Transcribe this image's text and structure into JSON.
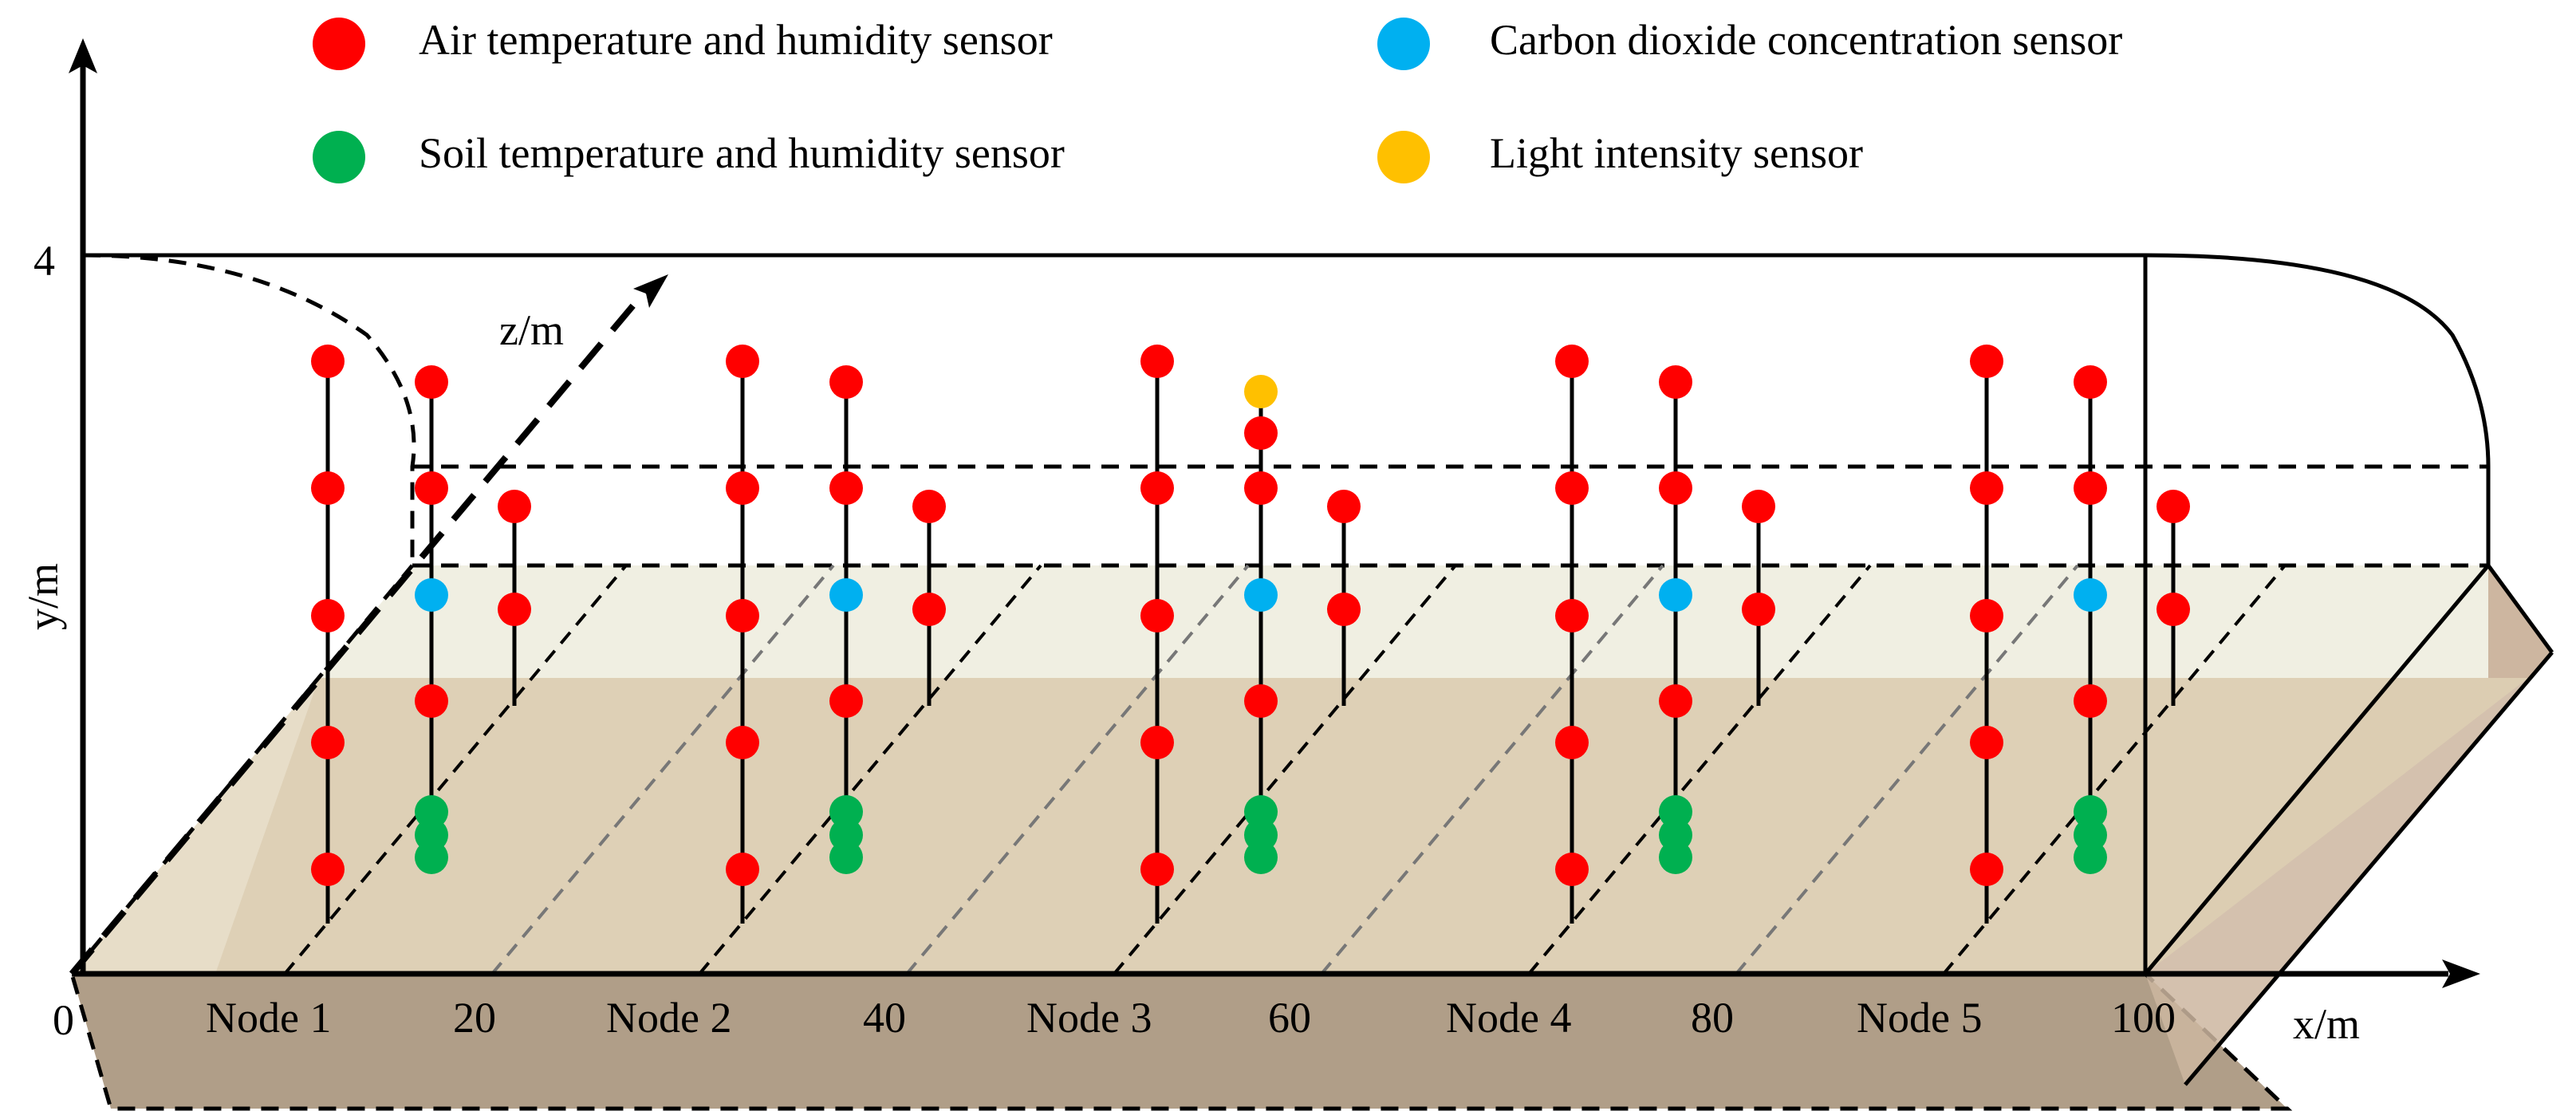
{
  "legend": {
    "air": "Air temperature and humidity sensor",
    "co2": "Carbon dioxide concentration sensor",
    "soil": "Soil temperature and humidity sensor",
    "light": "Light intensity sensor"
  },
  "axes": {
    "x_label": "x/m",
    "y_label": "y/m",
    "z_label": "z/m",
    "y_max": "4",
    "origin": "0",
    "x_ticks": [
      "20",
      "40",
      "60",
      "80",
      "100"
    ]
  },
  "nodes": [
    "Node 1",
    "Node 2",
    "Node 3",
    "Node 4",
    "Node 5"
  ],
  "colors": {
    "air": "#ff0000",
    "co2": "#00b0f0",
    "soil": "#00b050",
    "light": "#ffc000",
    "ground_light": "#f0efe2",
    "ground_dark": "#dccdb2",
    "base": "#b09e88",
    "end_face": "#cdb6a0"
  }
}
